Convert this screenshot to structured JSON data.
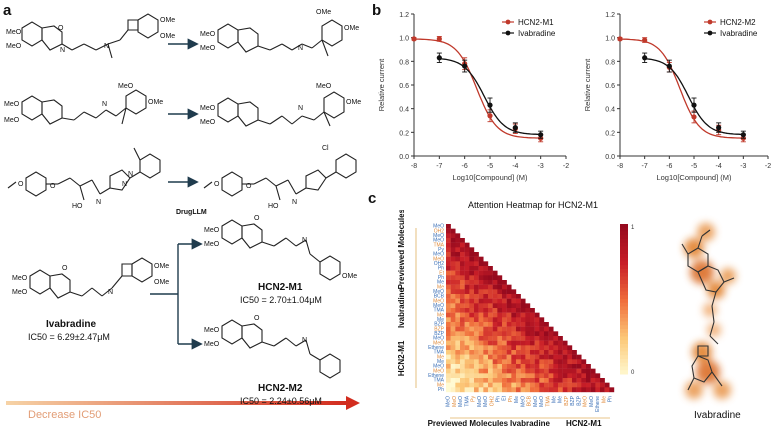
{
  "panels": {
    "a": "a",
    "b": "b",
    "c": "c"
  },
  "panel_a": {
    "arrow_label": "DrugLLM",
    "ivabradine": {
      "name": "Ivabradine",
      "ic50": "IC50 = 6.29±2.47μM"
    },
    "hcn2_m1": {
      "name": "HCN2-M1",
      "ic50": "IC50 = 2.70±1.04μM"
    },
    "hcn2_m2": {
      "name": "HCN2-M2",
      "ic50": "IC50 = 2.24±0.56μM"
    },
    "decrease_label": "Decrease IC50",
    "atom_labels": {
      "ome": "OMe",
      "meo": "MeO",
      "o": "O",
      "n": "N",
      "ho": "HO",
      "cl": "Cl"
    }
  },
  "chart_data": [
    {
      "type": "line",
      "title": "",
      "xlabel": "Log10[Compound] (M)",
      "ylabel": "Relative current",
      "xlim": [
        -8,
        -2
      ],
      "ylim": [
        0.0,
        1.2
      ],
      "xticks": [
        "-8",
        "-7",
        "-6",
        "-5",
        "-4",
        "-3",
        "-2"
      ],
      "yticks": [
        "0.0",
        "0.2",
        "0.4",
        "0.6",
        "0.8",
        "1.0",
        "1.2"
      ],
      "series": [
        {
          "name": "HCN2-M1",
          "color": "#c0392b",
          "x": [
            -8,
            -7,
            -6,
            -5,
            -4,
            -3
          ],
          "y": [
            0.99,
            0.99,
            0.78,
            0.34,
            0.23,
            0.15
          ],
          "err": [
            0.01,
            0.02,
            0.05,
            0.05,
            0.04,
            0.03
          ]
        },
        {
          "name": "Ivabradine",
          "color": "#111111",
          "x": [
            -7,
            -6,
            -5,
            -4,
            -3
          ],
          "y": [
            0.83,
            0.76,
            0.43,
            0.24,
            0.18
          ],
          "err": [
            0.04,
            0.05,
            0.06,
            0.04,
            0.03
          ]
        }
      ]
    },
    {
      "type": "line",
      "title": "",
      "xlabel": "Log10[Compound] (M)",
      "ylabel": "Relative current",
      "xlim": [
        -8,
        -2
      ],
      "ylim": [
        0.0,
        1.2
      ],
      "xticks": [
        "-8",
        "-7",
        "-6",
        "-5",
        "-4",
        "-3",
        "-2"
      ],
      "yticks": [
        "0.0",
        "0.2",
        "0.4",
        "0.6",
        "0.8",
        "1.0",
        "1.2"
      ],
      "series": [
        {
          "name": "HCN2-M2",
          "color": "#c0392b",
          "x": [
            -8,
            -7,
            -6,
            -5,
            -4,
            -3
          ],
          "y": [
            0.99,
            0.98,
            0.75,
            0.33,
            0.22,
            0.15
          ],
          "err": [
            0.01,
            0.02,
            0.04,
            0.05,
            0.04,
            0.03
          ]
        },
        {
          "name": "Ivabradine",
          "color": "#111111",
          "x": [
            -7,
            -6,
            -5,
            -4,
            -3
          ],
          "y": [
            0.83,
            0.76,
            0.43,
            0.24,
            0.18
          ],
          "err": [
            0.04,
            0.05,
            0.06,
            0.04,
            0.03
          ]
        }
      ]
    },
    {
      "type": "heatmap",
      "title": "Attention Heatmap for HCN2-M1",
      "colorbar": {
        "min": "0",
        "max": "1"
      },
      "row_labels": [
        "MeO",
        "OH2",
        "MeO",
        "MeO",
        "TMA",
        "Py",
        "MeO",
        "MeO",
        "OH2",
        "Ph",
        "Et",
        "Ph",
        "Me",
        "Me",
        "MeO",
        "BCB",
        "MeO",
        "MeO",
        "TMA",
        "Me",
        "Me",
        "BZP",
        "BZP",
        "BZP",
        "MeO",
        "MeO",
        "Ethene",
        "TMA",
        "Me",
        "Me",
        "MeO",
        "MeO",
        "Ethene",
        "TMA",
        "Me",
        "Ph"
      ],
      "col_labels": [
        "MeO",
        "MeO",
        "MeO",
        "TMA",
        "Py",
        "MeO",
        "MeO",
        "OH2",
        "Ph",
        "Et",
        "Ph",
        "Me",
        "MeO",
        "BCB",
        "MeO",
        "MeO",
        "TMA",
        "Me",
        "Me",
        "BZP",
        "BZP",
        "BZP",
        "MeO",
        "MeO",
        "Ethene",
        "Me",
        "Ph"
      ],
      "group_labels": {
        "rows": [
          "Previewed Molecules",
          "Ivabradine",
          "HCN2-M1"
        ],
        "cols": [
          "Previewed Molecules",
          "Ivabradine",
          "HCN2-M1"
        ]
      }
    }
  ],
  "panel_c": {
    "molecule_caption": "Ivabradine"
  }
}
